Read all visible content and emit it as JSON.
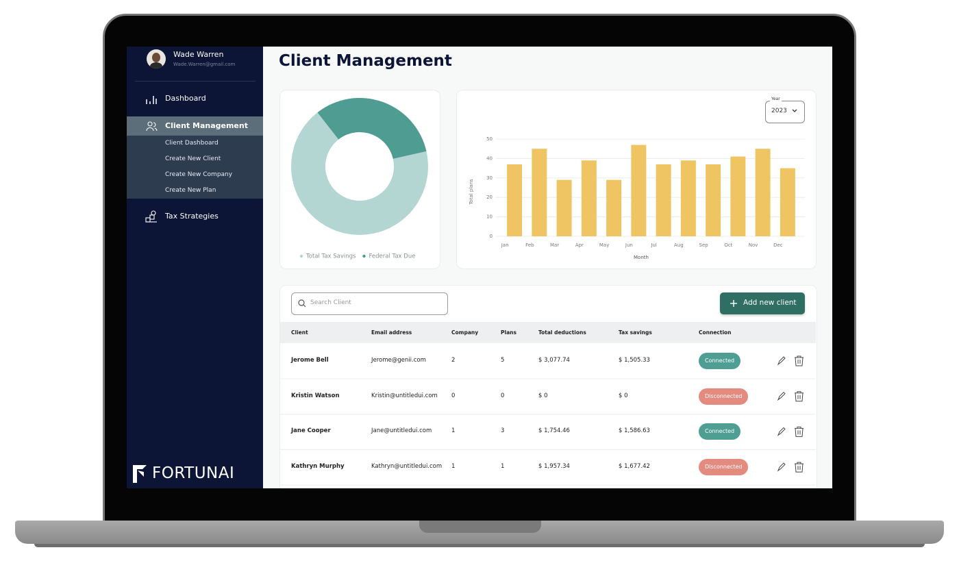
{
  "user": {
    "name": "Wade Warren",
    "email": "Wade.Warren@gmail.com"
  },
  "nav": {
    "dashboard": "Dashboard",
    "client_management": "Client Management",
    "sub_items": [
      "Client Dashboard",
      "Create New Client",
      "Create New Company",
      "Create New Plan"
    ],
    "tax_strategies": "Tax Strategies"
  },
  "brand": "FORTUNAI",
  "page_title": "Client Management",
  "chart_data": [
    {
      "type": "pie",
      "categories": [
        "Total Tax Savings",
        "Federal Tax Due"
      ],
      "values": [
        68,
        32
      ],
      "colors": [
        "#b3d6d3",
        "#4f9c93"
      ],
      "legend": "bottom"
    },
    {
      "type": "bar",
      "year_label": "Year",
      "year": "2023",
      "categories": [
        "Jan",
        "Feb",
        "Mar",
        "Apr",
        "May",
        "Jun",
        "Jul",
        "Aug",
        "Sep",
        "Oct",
        "Nov",
        "Dec"
      ],
      "values": [
        37,
        45,
        29,
        39,
        29,
        47,
        37,
        39,
        37,
        41,
        45,
        35
      ],
      "color": "#efc563",
      "ylim": [
        0,
        50
      ],
      "yticks": [
        0,
        10,
        20,
        30,
        40,
        50
      ],
      "grid": true,
      "xlabel": "Month",
      "ylabel": "Total plans"
    }
  ],
  "search_placeholder": "Search Client",
  "add_button": "Add new client",
  "table": {
    "columns": [
      "Client",
      "Email address",
      "Company",
      "Plans",
      "Total deductions",
      "Tax savings",
      "Connection"
    ],
    "rows": [
      [
        "Jerome Bell",
        "Jerome@genii.com",
        "2",
        "5",
        "$ 3,077.74",
        "$ 1,505.33",
        "Connected"
      ],
      [
        "Kristin Watson",
        "Kristin@untitledui.com",
        "0",
        "0",
        "$ 0",
        "$ 0",
        "Disconnected"
      ],
      [
        "Jane Cooper",
        "Jane@untitledui.com",
        "1",
        "3",
        "$ 1,754.46",
        "$ 1,586.63",
        "Connected"
      ],
      [
        "Kathryn Murphy",
        "Kathryn@untitledui.com",
        "1",
        "1",
        "$ 1,957.34",
        "$ 1,677.42",
        "Disconnected"
      ]
    ],
    "status_colors": {
      "Connected": "#4e9e94",
      "Disconnected": "#e48b80"
    }
  }
}
